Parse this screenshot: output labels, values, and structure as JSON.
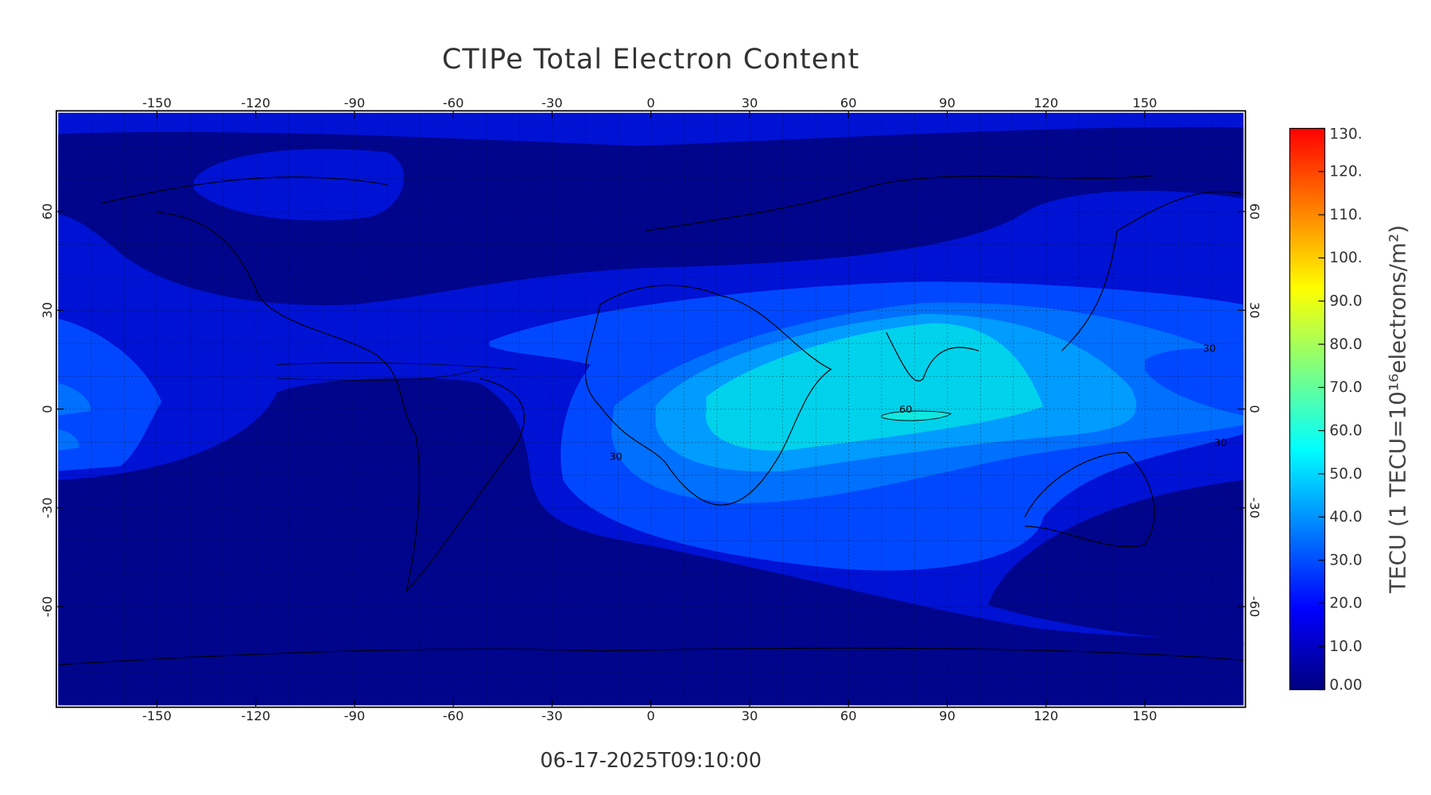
{
  "title": "CTIPe Total Electron Content",
  "timestamp": "06-17-2025T09:10:00",
  "map": {
    "xlim": [
      -180,
      180
    ],
    "ylim": [
      -90,
      90
    ],
    "xticks": [
      -150,
      -120,
      -90,
      -60,
      -30,
      0,
      30,
      60,
      90,
      120,
      150
    ],
    "yticks": [
      -60,
      -30,
      0,
      30,
      60
    ],
    "contour_labels": [
      60,
      30,
      30,
      30
    ]
  },
  "colorbar": {
    "label": "TECU (1 TECU=10¹⁶electrons/m²)",
    "lim": [
      0,
      130
    ],
    "ticks": [
      {
        "value": 0,
        "label": "0.00"
      },
      {
        "value": 10,
        "label": "10.0"
      },
      {
        "value": 20,
        "label": "20.0"
      },
      {
        "value": 30,
        "label": "30.0"
      },
      {
        "value": 40,
        "label": "40.0"
      },
      {
        "value": 50,
        "label": "50.0"
      },
      {
        "value": 60,
        "label": "60.0"
      },
      {
        "value": 70,
        "label": "70.0"
      },
      {
        "value": 80,
        "label": "80.0"
      },
      {
        "value": 90,
        "label": "90.0"
      },
      {
        "value": 100,
        "label": "100."
      },
      {
        "value": 110,
        "label": "110."
      },
      {
        "value": 120,
        "label": "120."
      },
      {
        "value": 130,
        "label": "130."
      }
    ],
    "colormap": [
      "#00007f",
      "#0000ff",
      "#007fff",
      "#00ffff",
      "#7fff7f",
      "#ffff00",
      "#ff7f00",
      "#ff0000"
    ]
  }
}
